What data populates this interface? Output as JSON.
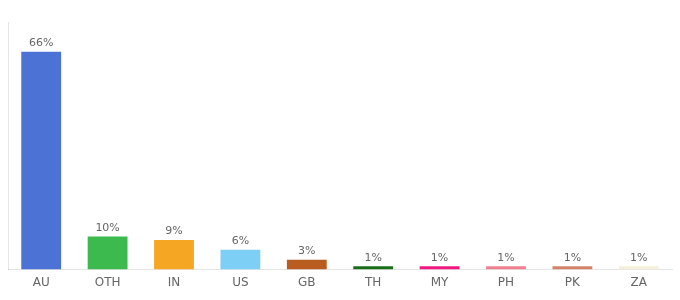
{
  "chart_data": {
    "type": "bar",
    "categories": [
      "AU",
      "OTH",
      "IN",
      "US",
      "GB",
      "TH",
      "MY",
      "PH",
      "PK",
      "ZA"
    ],
    "values": [
      66,
      10,
      9,
      6,
      3,
      1,
      1,
      1,
      1,
      1
    ],
    "value_labels": [
      "66%",
      "10%",
      "9%",
      "6%",
      "3%",
      "1%",
      "1%",
      "1%",
      "1%",
      "1%"
    ],
    "colors": [
      "#4b72d4",
      "#3dba4e",
      "#f5a623",
      "#7ecff5",
      "#b85c20",
      "#1a6e1a",
      "#f01880",
      "#f08090",
      "#d4836a",
      "#f5f0dc"
    ],
    "ylim": [
      0,
      75
    ],
    "grid": false,
    "data_labels": true,
    "tick_labels": "x"
  }
}
